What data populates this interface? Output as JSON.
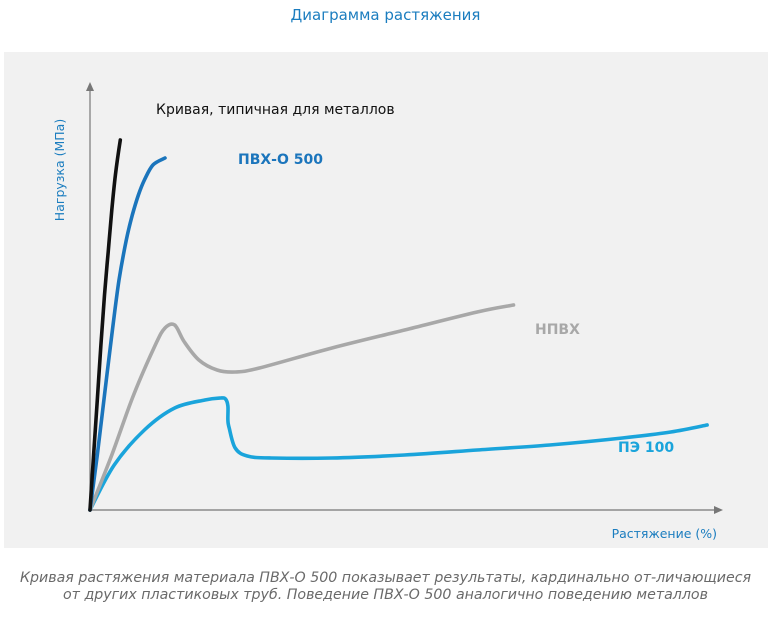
{
  "title": "Диаграмма растяжения",
  "caption": "Кривая растяжения материала ПВХ-О 500 показывает результаты, кардинально от-личающиеся от других пластиковых труб. Поведение ПВХ-О 500 аналогично поведению металлов",
  "chart_data": {
    "type": "line",
    "xlabel": "Растяжение (%)",
    "ylabel": "Нагрузка (МПа)",
    "grid": false,
    "ticks": false,
    "axis_color": "#777777",
    "label_color": "#1b7dbf",
    "series": [
      {
        "name": "Кривая, типичная для металлов",
        "color": "#111111",
        "label_color": "#111111",
        "points": [
          [
            0,
            0
          ],
          [
            3,
            55
          ],
          [
            6,
            110
          ],
          [
            9,
            165
          ],
          [
            12,
            215
          ],
          [
            15,
            258
          ],
          [
            18,
            300
          ],
          [
            21,
            335
          ],
          [
            25,
            370
          ]
        ]
      },
      {
        "name": "ПВХ-О 500",
        "color": "#1b75bc",
        "label_color": "#1b75bc",
        "points": [
          [
            0,
            0
          ],
          [
            6,
            55
          ],
          [
            12,
            115
          ],
          [
            18,
            175
          ],
          [
            24,
            230
          ],
          [
            30,
            270
          ],
          [
            35,
            295
          ],
          [
            40,
            315
          ],
          [
            45,
            330
          ],
          [
            52,
            345
          ],
          [
            62,
            352
          ]
        ]
      },
      {
        "name": "НПВХ",
        "color": "#a8a8a8",
        "label_color": "#a8a8a8",
        "points": [
          [
            0,
            0
          ],
          [
            18,
            55
          ],
          [
            36,
            115
          ],
          [
            54,
            165
          ],
          [
            62,
            182
          ],
          [
            70,
            185
          ],
          [
            78,
            168
          ],
          [
            90,
            150
          ],
          [
            105,
            140
          ],
          [
            120,
            138
          ],
          [
            140,
            142
          ],
          [
            200,
            162
          ],
          [
            260,
            180
          ],
          [
            320,
            198
          ],
          [
            350,
            205
          ]
        ]
      },
      {
        "name": "ПЭ 100",
        "color": "#1aa4db",
        "label_color": "#1aa4db",
        "points": [
          [
            0,
            0
          ],
          [
            20,
            45
          ],
          [
            45,
            80
          ],
          [
            70,
            102
          ],
          [
            95,
            110
          ],
          [
            108,
            112
          ],
          [
            112,
            111
          ],
          [
            114,
            104
          ],
          [
            114,
            90
          ],
          [
            115,
            82
          ],
          [
            120,
            62
          ],
          [
            130,
            54
          ],
          [
            150,
            52
          ],
          [
            200,
            52
          ],
          [
            260,
            55
          ],
          [
            320,
            60
          ],
          [
            380,
            65
          ],
          [
            440,
            72
          ],
          [
            480,
            78
          ],
          [
            510,
            85
          ]
        ]
      }
    ]
  }
}
